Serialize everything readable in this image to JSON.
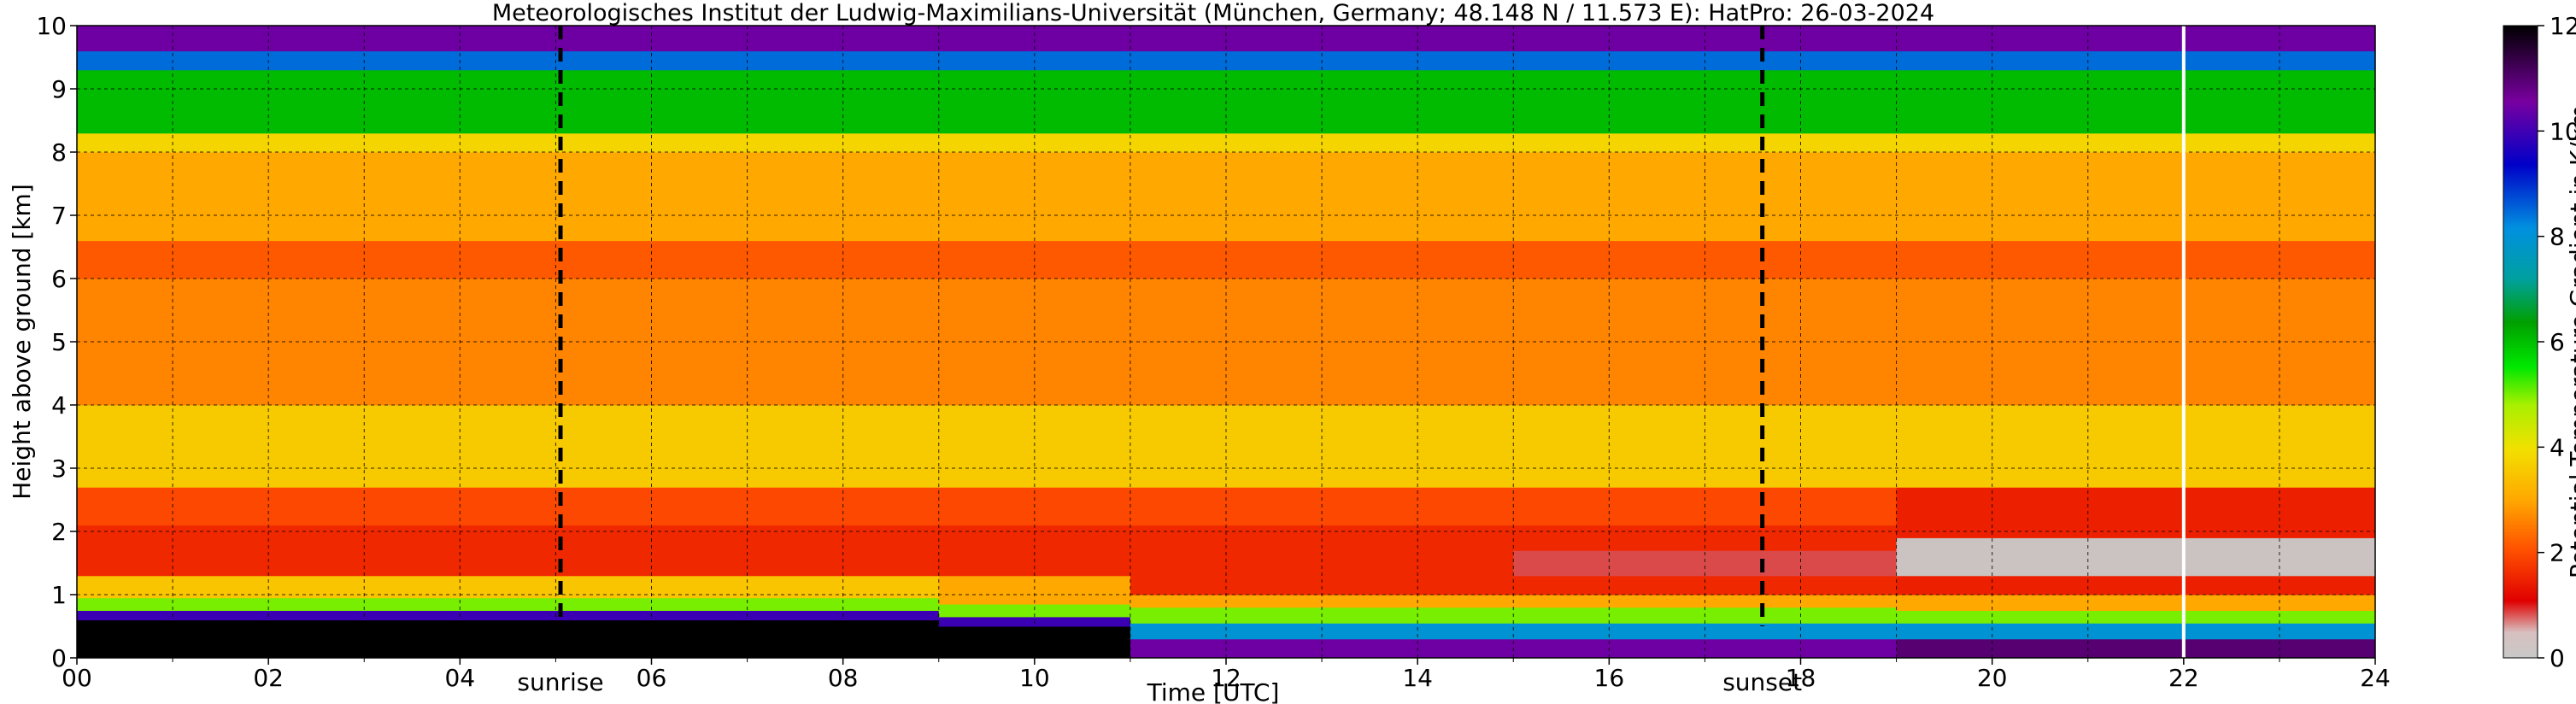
{
  "chart_data": {
    "type": "heatmap",
    "title": "Meteorologisches Institut der Ludwig-Maximilians-Universität (München, Germany; 48.148 N / 11.573 E):    HatPro: 26-03-2024",
    "xlabel": "Time [UTC]",
    "ylabel": "Height above ground [km]",
    "xlim": [
      0,
      24
    ],
    "ylim": [
      0,
      10
    ],
    "x_tick_labels": [
      "00",
      "02",
      "04",
      "06",
      "08",
      "10",
      "12",
      "14",
      "16",
      "18",
      "20",
      "22",
      "24"
    ],
    "y_tick_labels": [
      "0",
      "1",
      "2",
      "3",
      "4",
      "5",
      "6",
      "7",
      "8",
      "9",
      "10"
    ],
    "grid": true,
    "colorbar": {
      "label": "Potential Temperature Gradient in K/km",
      "range": [
        0,
        12
      ],
      "tick_labels": [
        "0",
        "2",
        "4",
        "6",
        "8",
        "10",
        "12"
      ]
    },
    "annotations": [
      {
        "text": "sunrise",
        "x": 5.05
      },
      {
        "text": "sunset",
        "x": 17.6
      }
    ],
    "data_gap_x": 22.0,
    "profiles": [
      {
        "x": 0,
        "bands": [
          [
            0,
            0.6,
            12
          ],
          [
            0.6,
            0.75,
            10
          ],
          [
            0.75,
            0.95,
            5
          ],
          [
            0.95,
            1.3,
            3.5
          ],
          [
            1.3,
            2.1,
            1.5
          ],
          [
            2.1,
            2.7,
            1.9
          ],
          [
            2.7,
            4.0,
            3.6
          ],
          [
            4.0,
            6.0,
            2.6
          ],
          [
            6.0,
            6.6,
            2.1
          ],
          [
            6.6,
            8.0,
            3.0
          ],
          [
            8.0,
            8.3,
            3.8
          ],
          [
            8.3,
            9.3,
            6.0
          ],
          [
            9.3,
            9.6,
            8.5
          ],
          [
            9.6,
            10,
            10.5
          ]
        ]
      },
      {
        "x": 6,
        "bands": [
          [
            0,
            0.6,
            12
          ],
          [
            0.6,
            0.75,
            10
          ],
          [
            0.75,
            0.95,
            5
          ],
          [
            0.95,
            1.3,
            3.5
          ],
          [
            1.3,
            2.1,
            1.5
          ],
          [
            2.1,
            2.7,
            1.9
          ],
          [
            2.7,
            4.0,
            3.6
          ],
          [
            4.0,
            6.0,
            2.6
          ],
          [
            6.0,
            6.6,
            2.1
          ],
          [
            6.6,
            8.0,
            3.0
          ],
          [
            8.0,
            8.3,
            3.8
          ],
          [
            8.3,
            9.3,
            6.0
          ],
          [
            9.3,
            9.6,
            8.5
          ],
          [
            9.6,
            10,
            10.5
          ]
        ]
      },
      {
        "x": 9,
        "bands": [
          [
            0,
            0.5,
            12
          ],
          [
            0.5,
            0.65,
            10
          ],
          [
            0.65,
            0.85,
            5
          ],
          [
            0.85,
            1.3,
            3.0
          ],
          [
            1.3,
            2.1,
            1.5
          ],
          [
            2.1,
            2.7,
            1.9
          ],
          [
            2.7,
            4.0,
            3.6
          ],
          [
            4.0,
            6.0,
            2.6
          ],
          [
            6.0,
            6.6,
            2.1
          ],
          [
            6.6,
            8.0,
            3.0
          ],
          [
            8.0,
            8.3,
            3.8
          ],
          [
            8.3,
            9.3,
            6.0
          ],
          [
            9.3,
            9.6,
            8.5
          ],
          [
            9.6,
            10,
            10.5
          ]
        ]
      },
      {
        "x": 11,
        "bands": [
          [
            0,
            0.3,
            10.5
          ],
          [
            0.3,
            0.55,
            8
          ],
          [
            0.55,
            0.8,
            5
          ],
          [
            0.8,
            1.0,
            3.0
          ],
          [
            1.0,
            2.1,
            1.5
          ],
          [
            2.1,
            2.7,
            1.9
          ],
          [
            2.7,
            4.0,
            3.6
          ],
          [
            4.0,
            6.0,
            2.6
          ],
          [
            6.0,
            6.6,
            2.1
          ],
          [
            6.6,
            8.0,
            3.0
          ],
          [
            8.0,
            8.3,
            3.8
          ],
          [
            8.3,
            9.3,
            6.0
          ],
          [
            9.3,
            9.6,
            8.5
          ],
          [
            9.6,
            10,
            10.5
          ]
        ]
      },
      {
        "x": 15,
        "bands": [
          [
            0,
            0.3,
            10.5
          ],
          [
            0.3,
            0.55,
            8
          ],
          [
            0.55,
            0.8,
            5
          ],
          [
            0.8,
            1.0,
            3.0
          ],
          [
            1.0,
            1.3,
            1.5
          ],
          [
            1.3,
            1.7,
            0.8
          ],
          [
            1.7,
            2.1,
            1.5
          ],
          [
            2.1,
            2.7,
            1.9
          ],
          [
            2.7,
            4.0,
            3.6
          ],
          [
            4.0,
            6.0,
            2.6
          ],
          [
            6.0,
            6.6,
            2.1
          ],
          [
            6.6,
            8.0,
            3.0
          ],
          [
            8.0,
            8.3,
            3.8
          ],
          [
            8.3,
            9.3,
            6.0
          ],
          [
            9.3,
            9.6,
            8.5
          ],
          [
            9.6,
            10,
            10.5
          ]
        ]
      },
      {
        "x": 19,
        "bands": [
          [
            0,
            0.3,
            11
          ],
          [
            0.3,
            0.55,
            8
          ],
          [
            0.55,
            0.75,
            5
          ],
          [
            0.75,
            1.0,
            3.0
          ],
          [
            1.0,
            1.3,
            1.4
          ],
          [
            1.3,
            1.9,
            0.2
          ],
          [
            1.9,
            2.7,
            1.4
          ],
          [
            2.7,
            4.0,
            3.6
          ],
          [
            4.0,
            6.0,
            2.6
          ],
          [
            6.0,
            6.6,
            2.1
          ],
          [
            6.6,
            8.0,
            3.0
          ],
          [
            8.0,
            8.3,
            3.8
          ],
          [
            8.3,
            9.3,
            6.0
          ],
          [
            9.3,
            9.6,
            8.5
          ],
          [
            9.6,
            10,
            10.5
          ]
        ]
      },
      {
        "x": 24,
        "bands": [
          [
            0,
            0.3,
            10
          ],
          [
            0.3,
            0.55,
            7.5
          ],
          [
            0.55,
            0.75,
            5
          ],
          [
            0.75,
            0.9,
            3.0
          ],
          [
            0.9,
            1.1,
            1.3
          ],
          [
            1.1,
            2.0,
            0.1
          ],
          [
            2.0,
            2.7,
            1.3
          ],
          [
            2.7,
            4.0,
            3.6
          ],
          [
            4.0,
            6.0,
            2.6
          ],
          [
            6.0,
            6.6,
            2.1
          ],
          [
            6.6,
            8.0,
            3.0
          ],
          [
            8.0,
            8.3,
            3.8
          ],
          [
            8.3,
            9.3,
            6.0
          ],
          [
            9.3,
            9.6,
            8.5
          ],
          [
            9.6,
            10,
            10.5
          ]
        ]
      }
    ]
  }
}
